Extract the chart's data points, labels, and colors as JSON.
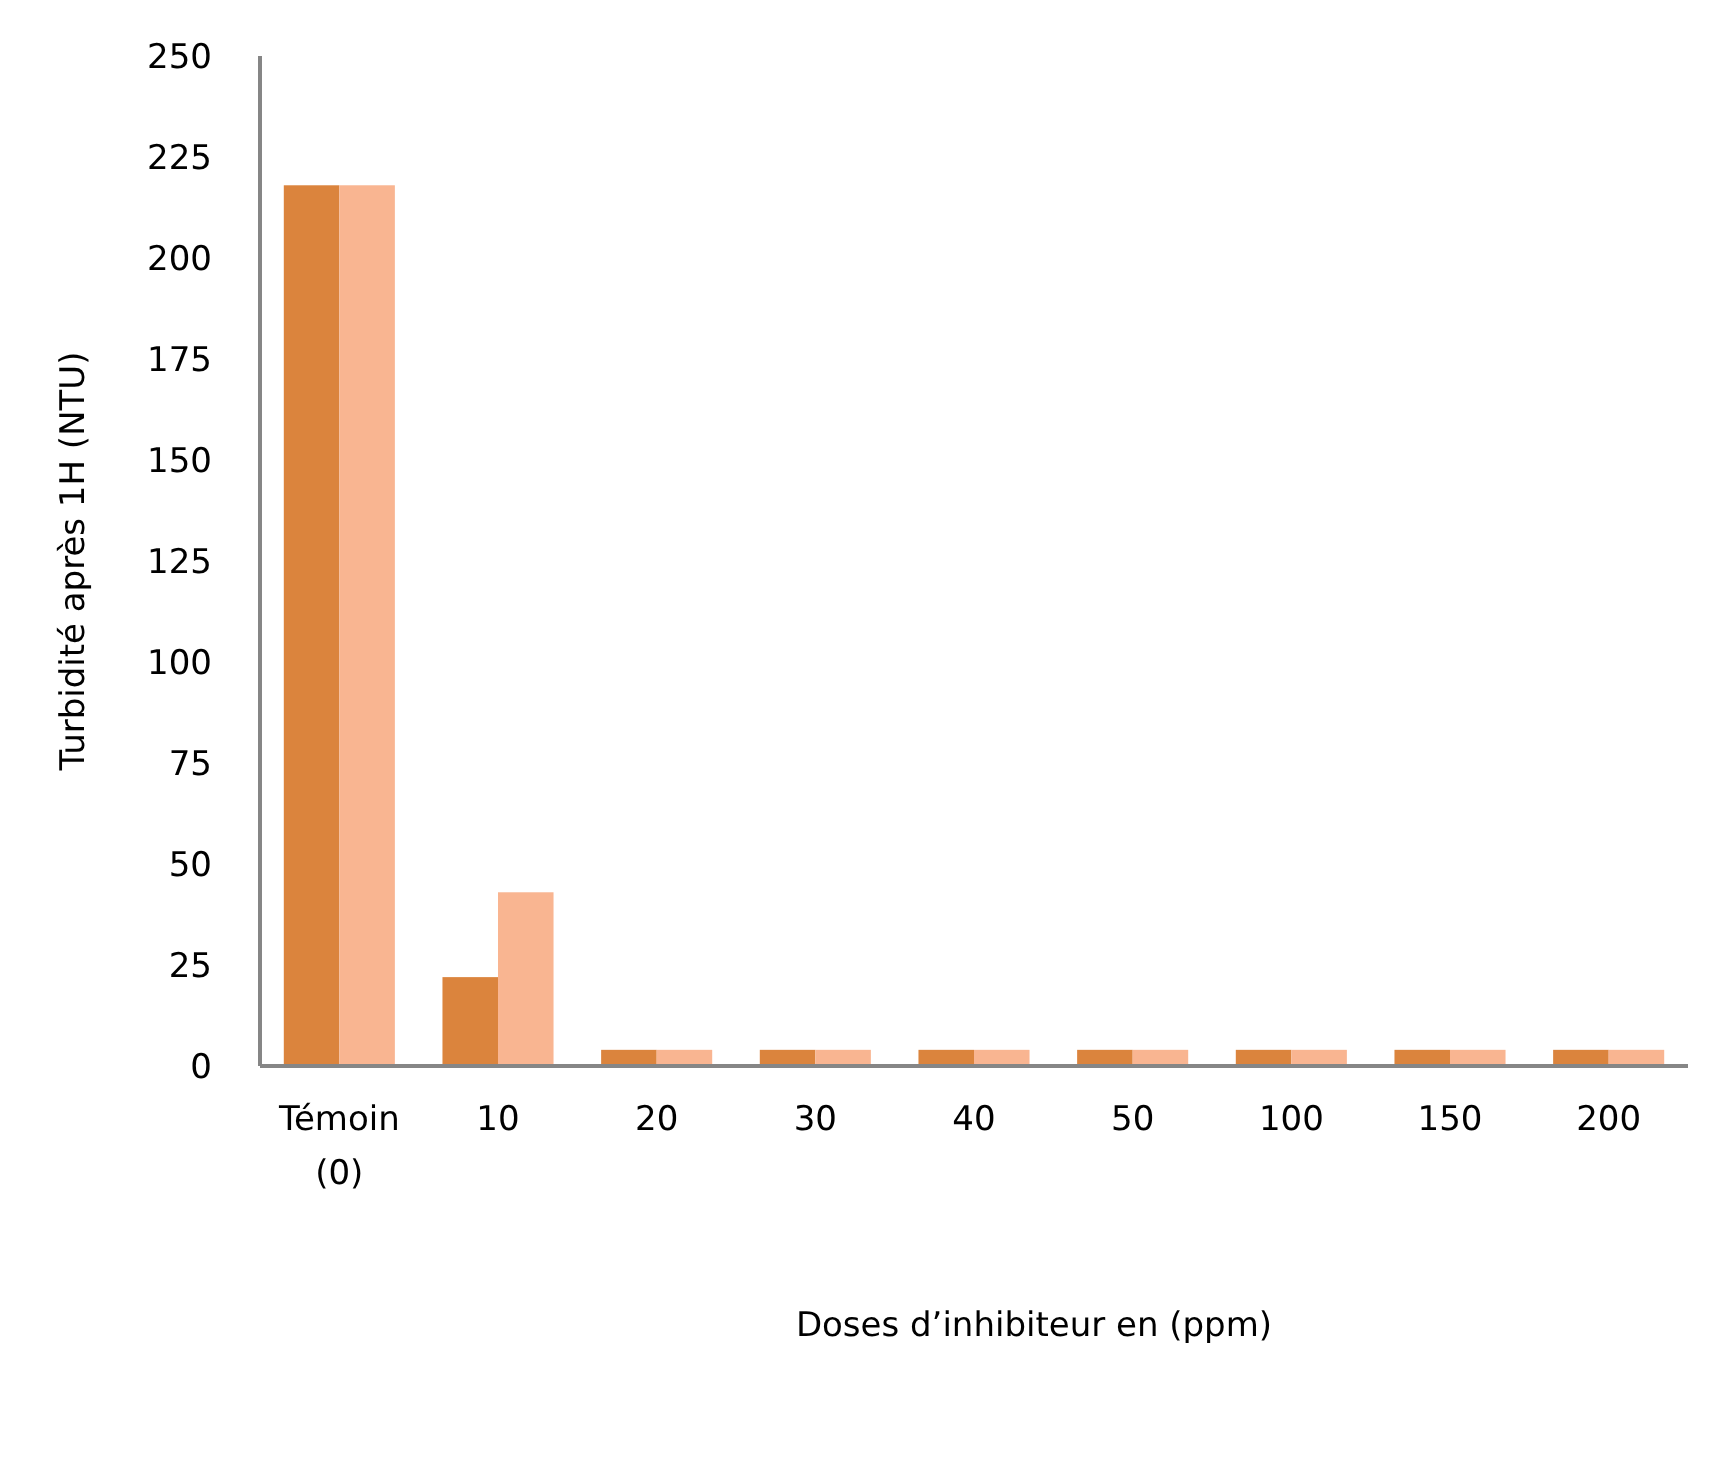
{
  "chart_data": {
    "type": "bar",
    "xlabel": "Doses d’inhibiteur en (ppm)",
    "ylabel": "Turbidité après 1H (NTU)",
    "categories": [
      "Témoin (0)",
      "10",
      "20",
      "30",
      "40",
      "50",
      "100",
      "150",
      "200"
    ],
    "series": [
      {
        "color": "#db843d",
        "values": [
          218,
          22,
          4,
          4,
          4,
          4,
          4,
          4,
          4
        ]
      },
      {
        "color": "#f9b591",
        "values": [
          218,
          43,
          4,
          4,
          4,
          4,
          4,
          4,
          4
        ]
      }
    ],
    "ylim": [
      0,
      250
    ],
    "yticks": [
      0,
      25,
      50,
      75,
      100,
      125,
      150,
      175,
      200,
      225,
      250
    ],
    "grid": false
  }
}
